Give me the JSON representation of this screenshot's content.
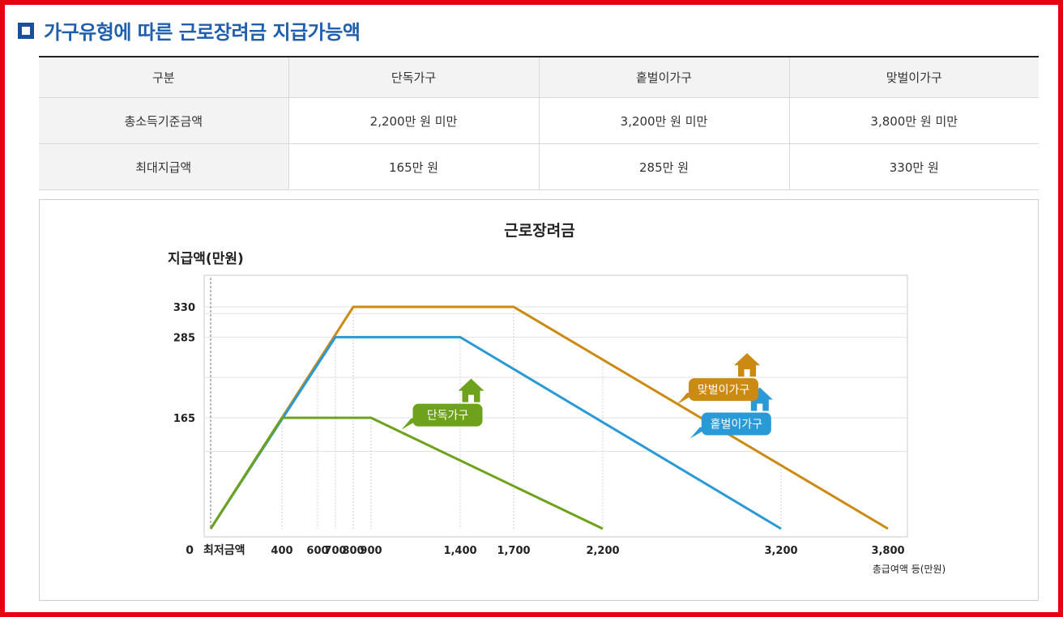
{
  "heading": {
    "title": "가구유형에 따른 근로장려금 지급가능액"
  },
  "table": {
    "headers": [
      "구분",
      "단독가구",
      "홑벌이가구",
      "맞벌이가구"
    ],
    "rows": [
      [
        "총소득기준금액",
        "2,200만 원 미만",
        "3,200만 원 미만",
        "3,800만 원 미만"
      ],
      [
        "최대지급액",
        "165만 원",
        "285만 원",
        "330만 원"
      ]
    ]
  },
  "chart_data": {
    "type": "line",
    "title": "근로장려금",
    "ylabel": "지급액(만원)",
    "xlabel": "총급여액 등(만원)",
    "x_ticks": [
      {
        "label": "최저금액",
        "value": 0
      },
      {
        "label": "400",
        "value": 400
      },
      {
        "label": "600",
        "value": 600
      },
      {
        "label": "700",
        "value": 700
      },
      {
        "label": "800",
        "value": 800
      },
      {
        "label": "900",
        "value": 900
      },
      {
        "label": "1,400",
        "value": 1400
      },
      {
        "label": "1,700",
        "value": 1700
      },
      {
        "label": "2,200",
        "value": 2200
      },
      {
        "label": "3,200",
        "value": 3200
      },
      {
        "label": "3,800",
        "value": 3800
      }
    ],
    "y_ticks": [
      {
        "label": "0",
        "value": 0
      },
      {
        "label": "165",
        "value": 165
      },
      {
        "label": "285",
        "value": 285
      },
      {
        "label": "330",
        "value": 330
      }
    ],
    "xlim": [
      0,
      3800
    ],
    "ylim": [
      0,
      330
    ],
    "series": [
      {
        "name": "단독가구",
        "color": "#6ea21c",
        "x": [
          0,
          400,
          900,
          2200
        ],
        "y": [
          0,
          165,
          165,
          0
        ]
      },
      {
        "name": "홑벌이가구",
        "color": "#2a9ad6",
        "x": [
          0,
          700,
          1400,
          3200
        ],
        "y": [
          0,
          285,
          285,
          0
        ]
      },
      {
        "name": "맞벌이가구",
        "color": "#cc8a12",
        "x": [
          0,
          800,
          1700,
          3800
        ],
        "y": [
          0,
          330,
          330,
          0
        ]
      }
    ],
    "legend_placement": "on-line callouts with house icons"
  }
}
